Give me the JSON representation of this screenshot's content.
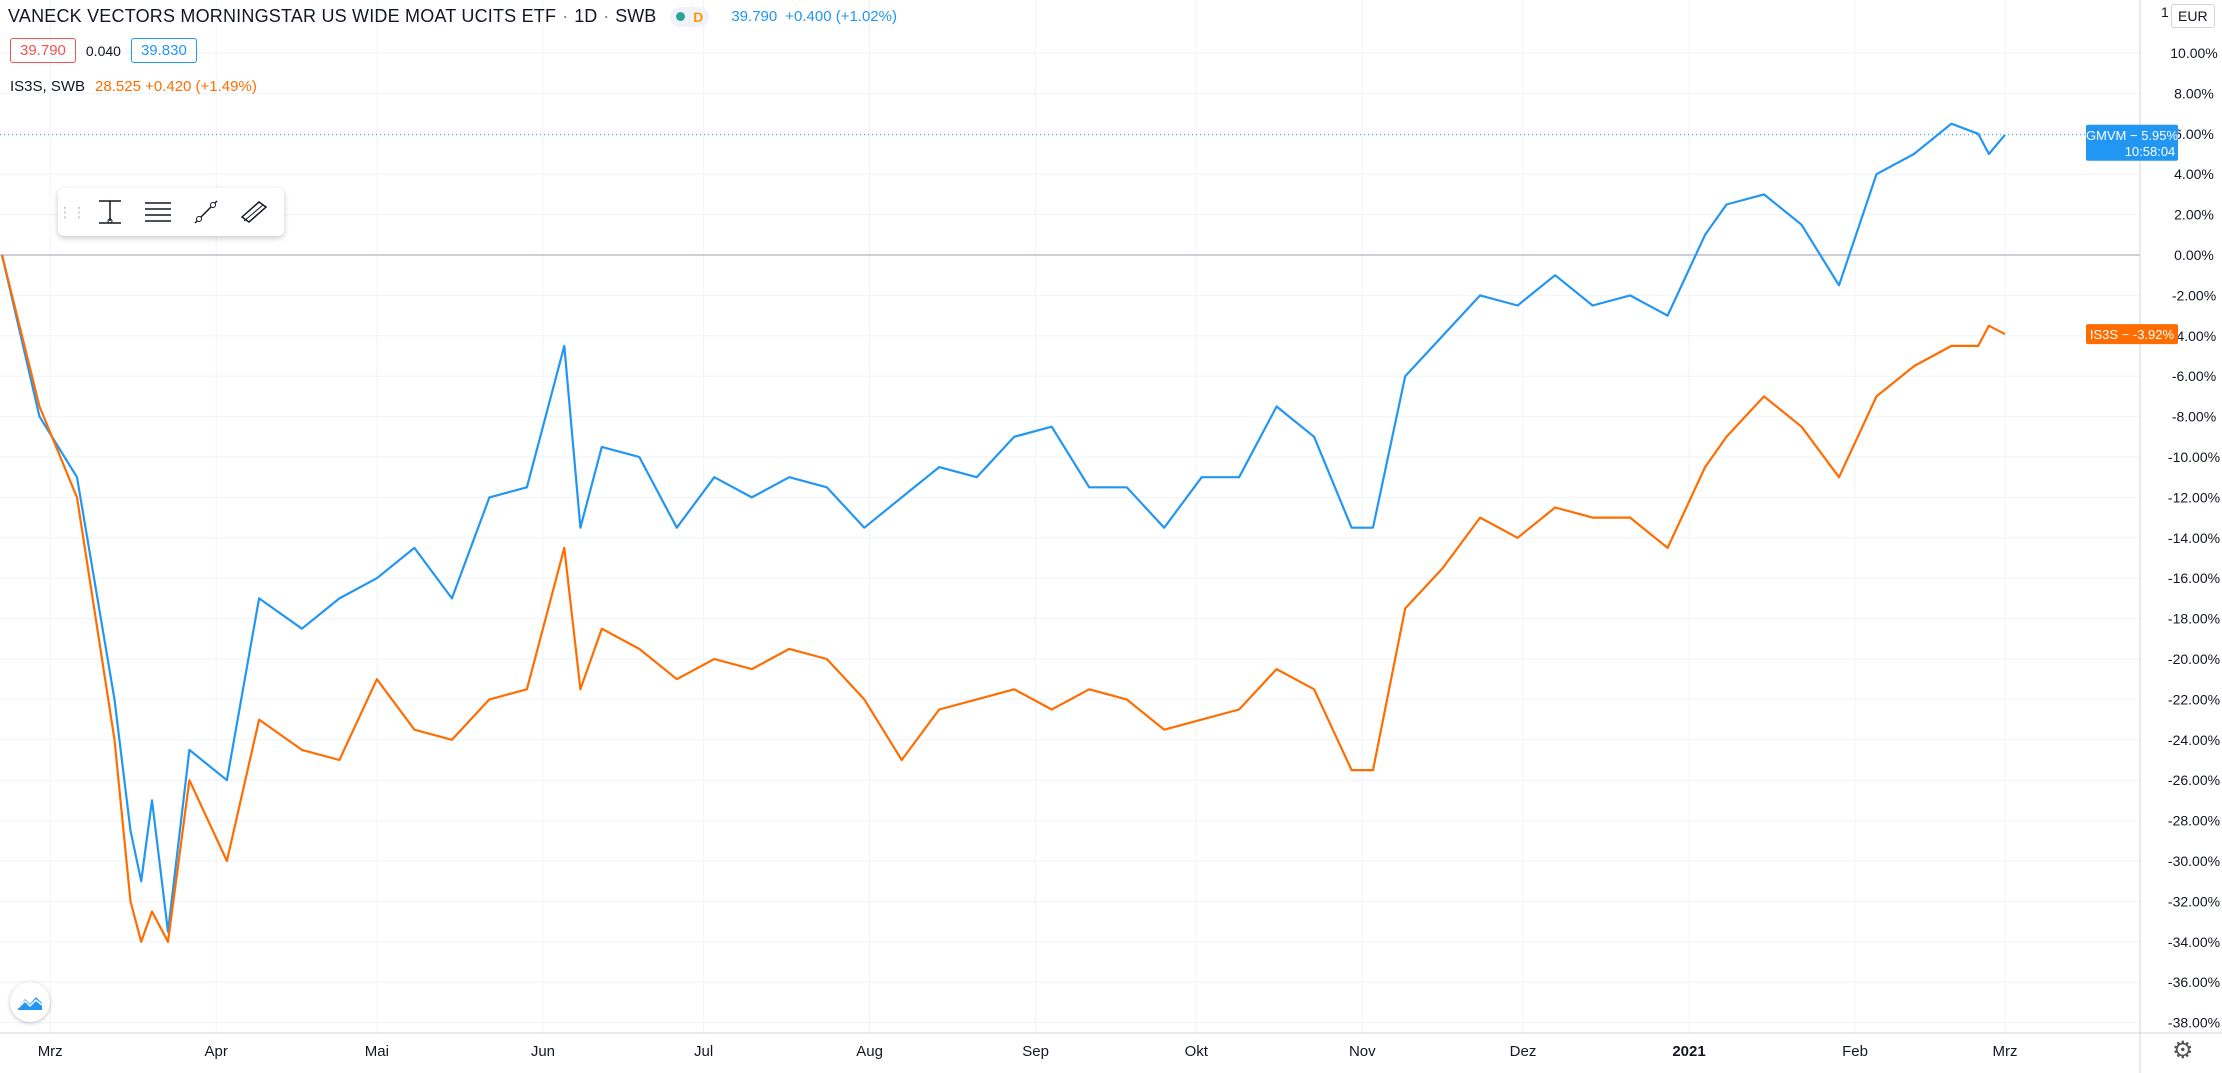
{
  "header": {
    "title": "VANECK VECTORS MORNINGSTAR US WIDE MOAT UCITS ETF",
    "interval": "1D",
    "exchange": "SWB",
    "d_label": "D",
    "price": "39.790",
    "change": "+0.400 (+1.02%)",
    "bid": "39.790",
    "spread": "0.040",
    "ask": "39.830"
  },
  "compare": {
    "symbol": "IS3S, SWB",
    "values": "28.525 +0.420 (+1.49%)"
  },
  "currency": "EUR",
  "axis_top_tick": "1",
  "colors": {
    "series1": "#2196f3",
    "series2": "#ff6d00",
    "grid": "#f0f3fa",
    "zero_line": "#b2b5be"
  },
  "icons": [
    "drag-handle-icon",
    "measure-icon",
    "levels-icon",
    "trend-line-icon",
    "channel-icon",
    "tradingview-logo-icon",
    "settings-gear-icon"
  ],
  "chart_data": {
    "type": "line",
    "y_unit": "%",
    "ylim": [
      -38.5,
      11
    ],
    "y_ticks": [
      "10.00%",
      "8.00%",
      "6.00%",
      "4.00%",
      "2.00%",
      "0.00%",
      "-2.00%",
      "-4.00%",
      "-6.00%",
      "-8.00%",
      "-10.00%",
      "-12.00%",
      "-14.00%",
      "-16.00%",
      "-18.00%",
      "-20.00%",
      "-22.00%",
      "-24.00%",
      "-26.00%",
      "-28.00%",
      "-30.00%",
      "-32.00%",
      "-34.00%",
      "-36.00%",
      "-38.00%"
    ],
    "x_ticks": [
      "Mrz",
      "Apr",
      "Mai",
      "Jun",
      "Jul",
      "Aug",
      "Sep",
      "Okt",
      "Nov",
      "Dez",
      "2021",
      "Feb",
      "Mrz"
    ],
    "grid": true,
    "series": [
      {
        "name": "GMVM",
        "last_label": "GMVM − 5.95%",
        "time_label": "10:58:04",
        "last_value": 5.95,
        "x": [
          "2020-02-21",
          "2020-02-28",
          "2020-03-06",
          "2020-03-13",
          "2020-03-16",
          "2020-03-18",
          "2020-03-20",
          "2020-03-23",
          "2020-03-27",
          "2020-04-03",
          "2020-04-09",
          "2020-04-17",
          "2020-04-24",
          "2020-05-01",
          "2020-05-08",
          "2020-05-15",
          "2020-05-22",
          "2020-05-29",
          "2020-06-05",
          "2020-06-08",
          "2020-06-12",
          "2020-06-19",
          "2020-06-26",
          "2020-07-03",
          "2020-07-10",
          "2020-07-17",
          "2020-07-24",
          "2020-07-31",
          "2020-08-07",
          "2020-08-14",
          "2020-08-21",
          "2020-08-28",
          "2020-09-04",
          "2020-09-11",
          "2020-09-18",
          "2020-09-25",
          "2020-10-02",
          "2020-10-09",
          "2020-10-16",
          "2020-10-23",
          "2020-10-30",
          "2020-11-03",
          "2020-11-09",
          "2020-11-16",
          "2020-11-23",
          "2020-11-30",
          "2020-12-07",
          "2020-12-14",
          "2020-12-21",
          "2020-12-28",
          "2021-01-04",
          "2021-01-08",
          "2021-01-15",
          "2021-01-22",
          "2021-01-29",
          "2021-02-05",
          "2021-02-12",
          "2021-02-19",
          "2021-02-24",
          "2021-02-26",
          "2021-03-01"
        ],
        "values": [
          0.0,
          -8.0,
          -11.0,
          -22.0,
          -28.5,
          -31.0,
          -27.0,
          -33.5,
          -24.5,
          -26.0,
          -17.0,
          -18.5,
          -17.0,
          -16.0,
          -14.5,
          -17.0,
          -12.0,
          -11.5,
          -4.5,
          -13.5,
          -9.5,
          -10.0,
          -13.5,
          -11.0,
          -12.0,
          -11.0,
          -11.5,
          -13.5,
          -12.0,
          -10.5,
          -11.0,
          -9.0,
          -8.5,
          -11.5,
          -11.5,
          -13.5,
          -11.0,
          -11.0,
          -7.5,
          -9.0,
          -13.5,
          -13.5,
          -6.0,
          -4.0,
          -2.0,
          -2.5,
          -1.0,
          -2.5,
          -2.0,
          -3.0,
          1.0,
          2.5,
          3.0,
          1.5,
          -1.5,
          4.0,
          5.0,
          6.5,
          6.0,
          5.0,
          5.95
        ]
      },
      {
        "name": "IS3S",
        "last_label": "IS3S − -3.92%",
        "last_value": -3.92,
        "x": [
          "2020-02-21",
          "2020-02-28",
          "2020-03-06",
          "2020-03-13",
          "2020-03-16",
          "2020-03-18",
          "2020-03-20",
          "2020-03-23",
          "2020-03-27",
          "2020-04-03",
          "2020-04-09",
          "2020-04-17",
          "2020-04-24",
          "2020-05-01",
          "2020-05-08",
          "2020-05-15",
          "2020-05-22",
          "2020-05-29",
          "2020-06-05",
          "2020-06-08",
          "2020-06-12",
          "2020-06-19",
          "2020-06-26",
          "2020-07-03",
          "2020-07-10",
          "2020-07-17",
          "2020-07-24",
          "2020-07-31",
          "2020-08-07",
          "2020-08-14",
          "2020-08-21",
          "2020-08-28",
          "2020-09-04",
          "2020-09-11",
          "2020-09-18",
          "2020-09-25",
          "2020-10-02",
          "2020-10-09",
          "2020-10-16",
          "2020-10-23",
          "2020-10-30",
          "2020-11-03",
          "2020-11-09",
          "2020-11-16",
          "2020-11-23",
          "2020-11-30",
          "2020-12-07",
          "2020-12-14",
          "2020-12-21",
          "2020-12-28",
          "2021-01-04",
          "2021-01-08",
          "2021-01-15",
          "2021-01-22",
          "2021-01-29",
          "2021-02-05",
          "2021-02-12",
          "2021-02-19",
          "2021-02-24",
          "2021-02-26",
          "2021-03-01"
        ],
        "values": [
          0.0,
          -7.5,
          -12.0,
          -24.0,
          -32.0,
          -34.0,
          -32.5,
          -34.0,
          -26.0,
          -30.0,
          -23.0,
          -24.5,
          -25.0,
          -21.0,
          -23.5,
          -24.0,
          -22.0,
          -21.5,
          -14.5,
          -21.5,
          -18.5,
          -19.5,
          -21.0,
          -20.0,
          -20.5,
          -19.5,
          -20.0,
          -22.0,
          -25.0,
          -22.5,
          -22.0,
          -21.5,
          -22.5,
          -21.5,
          -22.0,
          -23.5,
          -23.0,
          -22.5,
          -20.5,
          -21.5,
          -25.5,
          -25.5,
          -17.5,
          -15.5,
          -13.0,
          -14.0,
          -12.5,
          -13.0,
          -13.0,
          -14.5,
          -10.5,
          -9.0,
          -7.0,
          -8.5,
          -11.0,
          -7.0,
          -5.5,
          -4.5,
          -4.5,
          -3.5,
          -3.92
        ]
      }
    ]
  }
}
